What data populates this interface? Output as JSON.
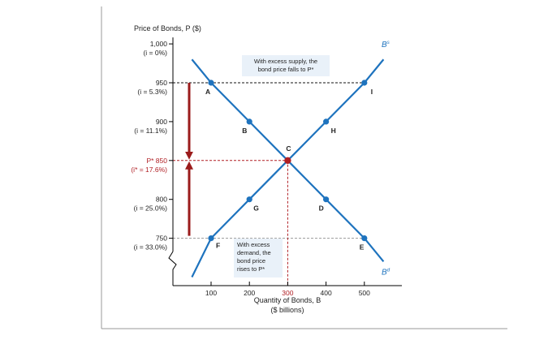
{
  "chart_data": {
    "type": "line",
    "ylabel": "Price of Bonds, P ($)",
    "xlabel": "Quantity of Bonds, B",
    "xlabel_unit": "($ billions)",
    "x_ticks": [
      100,
      200,
      300,
      400,
      500
    ],
    "y_ticks": [
      {
        "value": 1000,
        "label": "1,000",
        "sublabel": "(i = 0%)"
      },
      {
        "value": 950,
        "label": "950",
        "sublabel": "(i = 5.3%)"
      },
      {
        "value": 900,
        "label": "900",
        "sublabel": "(i = 11.1%)"
      },
      {
        "value": 850,
        "label": "P*  850",
        "sublabel": "(i* = 17.6%)",
        "highlight": true
      },
      {
        "value": 800,
        "label": "800",
        "sublabel": "(i = 25.0%)"
      },
      {
        "value": 750,
        "label": "750",
        "sublabel": "(i = 33.0%)"
      }
    ],
    "series": [
      {
        "name": "B^s",
        "label": "Bs",
        "points": [
          {
            "x": 50,
            "y": 700
          },
          {
            "x": 100,
            "y": 750
          },
          {
            "x": 200,
            "y": 800
          },
          {
            "x": 300,
            "y": 850
          },
          {
            "x": 400,
            "y": 900
          },
          {
            "x": 500,
            "y": 950
          },
          {
            "x": 550,
            "y": 980
          }
        ]
      },
      {
        "name": "B^d",
        "label": "Bd",
        "points": [
          {
            "x": 50,
            "y": 980
          },
          {
            "x": 100,
            "y": 950
          },
          {
            "x": 200,
            "y": 900
          },
          {
            "x": 300,
            "y": 850
          },
          {
            "x": 400,
            "y": 800
          },
          {
            "x": 500,
            "y": 750
          },
          {
            "x": 550,
            "y": 720
          }
        ]
      }
    ],
    "points": [
      {
        "label": "A",
        "x": 100,
        "y": 950
      },
      {
        "label": "B",
        "x": 200,
        "y": 900
      },
      {
        "label": "C",
        "x": 300,
        "y": 850,
        "equilibrium": true
      },
      {
        "label": "D",
        "x": 400,
        "y": 800
      },
      {
        "label": "E",
        "x": 500,
        "y": 750
      },
      {
        "label": "F",
        "x": 100,
        "y": 750
      },
      {
        "label": "G",
        "x": 200,
        "y": 800
      },
      {
        "label": "H",
        "x": 400,
        "y": 900
      },
      {
        "label": "I",
        "x": 500,
        "y": 950
      }
    ],
    "annotations": {
      "excess_supply": [
        "With excess supply, the",
        "bond price falls to P*"
      ],
      "excess_demand": [
        "With excess",
        "demand, the",
        "bond price",
        "rises to P*"
      ]
    },
    "xlim": [
      0,
      600
    ],
    "ylim": [
      700,
      1000
    ],
    "colors": {
      "curve": "#1e73be",
      "equilibrium": "#b01f24",
      "arrow": "#9b1b1b",
      "axis": "#000000",
      "annotation_bg": "#e9f1f9"
    }
  }
}
